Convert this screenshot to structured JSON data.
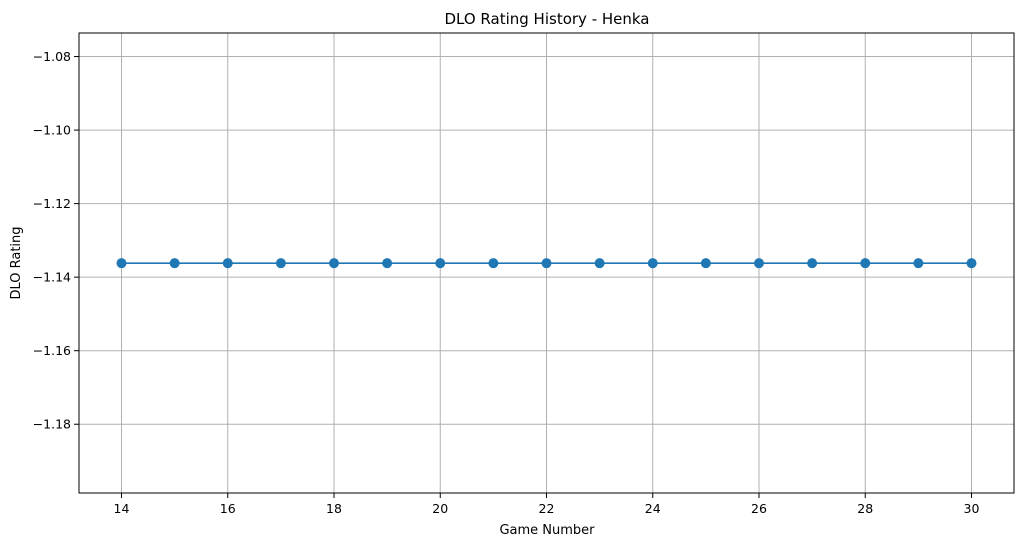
{
  "chart_data": {
    "type": "line",
    "title": "DLO Rating History - Henka",
    "xlabel": "Game Number",
    "ylabel": "DLO Rating",
    "xlim": [
      13.2,
      30.8
    ],
    "ylim": [
      -1.1987,
      -1.0736
    ],
    "xticks": [
      14,
      16,
      18,
      20,
      22,
      24,
      26,
      28,
      30
    ],
    "xtick_labels": [
      "14",
      "16",
      "18",
      "20",
      "22",
      "24",
      "26",
      "28",
      "30"
    ],
    "yticks": [
      -1.08,
      -1.1,
      -1.12,
      -1.14,
      -1.16,
      -1.18
    ],
    "ytick_labels": [
      "−1.08",
      "−1.10",
      "−1.12",
      "−1.14",
      "−1.16",
      "−1.18"
    ],
    "grid": true,
    "marker": "circle",
    "series": [
      {
        "color": "#1f77b4",
        "x": [
          14,
          15,
          16,
          17,
          18,
          19,
          20,
          21,
          22,
          23,
          24,
          25,
          26,
          27,
          28,
          29,
          30
        ],
        "y": [
          -1.1362,
          -1.1362,
          -1.1362,
          -1.1362,
          -1.1362,
          -1.1362,
          -1.1362,
          -1.1362,
          -1.1362,
          -1.1362,
          -1.1362,
          -1.1362,
          -1.1362,
          -1.1362,
          -1.1362,
          -1.1362,
          -1.1362
        ]
      }
    ]
  }
}
